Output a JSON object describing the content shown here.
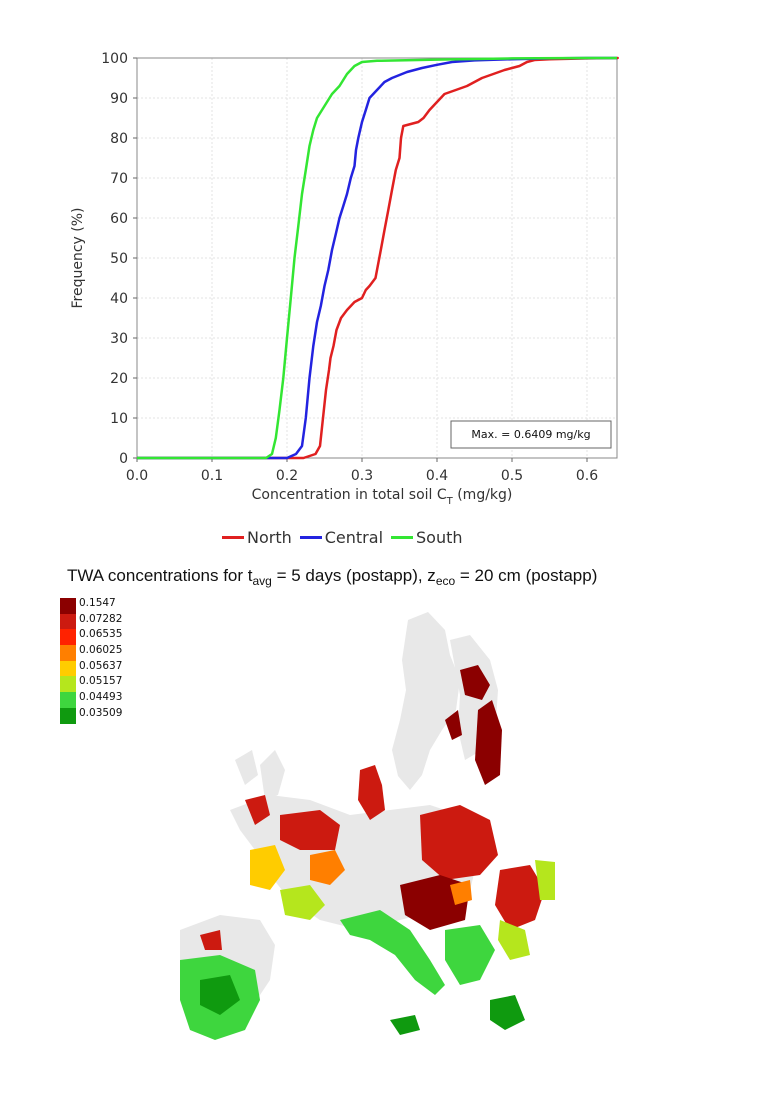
{
  "chart_data": {
    "type": "line",
    "xlabel": "Concentration in total soil C",
    "xlabel_sub": "T",
    "xlabel_unit": " (mg/kg)",
    "ylabel": "Frequency (%)",
    "xlim": [
      0.0,
      0.64
    ],
    "ylim": [
      0,
      100
    ],
    "x_ticks": [
      "0.0",
      "0.1",
      "0.2",
      "0.3",
      "0.4",
      "0.5",
      "0.6"
    ],
    "y_ticks": [
      "0",
      "10",
      "20",
      "30",
      "40",
      "50",
      "60",
      "70",
      "80",
      "90",
      "100"
    ],
    "grid": true,
    "annotation": "Max. = 0.6409 mg/kg",
    "legend_position": "bottom",
    "series": [
      {
        "name": "North",
        "color": "#e02020",
        "x": [
          0.222,
          0.238,
          0.244,
          0.248,
          0.252,
          0.256,
          0.258,
          0.262,
          0.266,
          0.272,
          0.28,
          0.29,
          0.3,
          0.305,
          0.31,
          0.318,
          0.325,
          0.33,
          0.335,
          0.34,
          0.345,
          0.35,
          0.352,
          0.355,
          0.365,
          0.375,
          0.382,
          0.39,
          0.4,
          0.41,
          0.425,
          0.44,
          0.46,
          0.475,
          0.49,
          0.5,
          0.51,
          0.52,
          0.53,
          0.55,
          0.6,
          0.6409
        ],
        "y": [
          0,
          1,
          3,
          10,
          17,
          22,
          25,
          28,
          32,
          35,
          37,
          39,
          40,
          42,
          43,
          45,
          52,
          57,
          62,
          67,
          72,
          75,
          80,
          83,
          83.5,
          84,
          85,
          87,
          89,
          91,
          92,
          93,
          95,
          96,
          97,
          97.5,
          98,
          99,
          99.5,
          99.7,
          99.9,
          100
        ]
      },
      {
        "name": "Central",
        "color": "#2323e0",
        "x": [
          0.2,
          0.212,
          0.22,
          0.225,
          0.23,
          0.235,
          0.24,
          0.245,
          0.25,
          0.255,
          0.26,
          0.265,
          0.27,
          0.275,
          0.28,
          0.285,
          0.29,
          0.292,
          0.295,
          0.3,
          0.305,
          0.31,
          0.32,
          0.33,
          0.34,
          0.36,
          0.38,
          0.4,
          0.42,
          0.45,
          0.5,
          0.55,
          0.6,
          0.62
        ],
        "y": [
          0,
          1,
          3,
          10,
          20,
          28,
          34,
          38,
          43,
          47,
          52,
          56,
          60,
          63,
          66,
          70,
          73,
          77,
          80,
          84,
          87,
          90,
          92,
          94,
          95,
          96.5,
          97.5,
          98.3,
          99,
          99.4,
          99.7,
          99.9,
          100,
          100
        ]
      },
      {
        "name": "South",
        "color": "#33e633",
        "x": [
          0.172,
          0.18,
          0.185,
          0.19,
          0.195,
          0.2,
          0.205,
          0.21,
          0.215,
          0.22,
          0.225,
          0.23,
          0.235,
          0.24,
          0.25,
          0.26,
          0.27,
          0.28,
          0.29,
          0.3,
          0.32,
          0.4,
          0.5,
          0.6
        ],
        "y": [
          0,
          1,
          5,
          12,
          20,
          30,
          40,
          50,
          58,
          66,
          72,
          78,
          82,
          85,
          88,
          91,
          93,
          96,
          98,
          99,
          99.3,
          99.6,
          99.9,
          100
        ]
      }
    ]
  },
  "map": {
    "title_prefix": "TWA concentrations for t",
    "title_sub1": "avg",
    "title_mid": " = 5 days (postapp), z",
    "title_sub2": "eco",
    "title_suffix": " = 20 cm (postapp)",
    "legend": [
      {
        "label": "0.1547",
        "color": "#8b0000"
      },
      {
        "label": "0.07282",
        "color": "#cc1a10"
      },
      {
        "label": "0.06535",
        "color": "#ff2200"
      },
      {
        "label": "0.06025",
        "color": "#ff7f00"
      },
      {
        "label": "0.05637",
        "color": "#ffcc00"
      },
      {
        "label": "0.05157",
        "color": "#b5e61d"
      },
      {
        "label": "0.04493",
        "color": "#3ed63e"
      },
      {
        "label": "0.03509",
        "color": "#0f9a0f"
      }
    ]
  }
}
